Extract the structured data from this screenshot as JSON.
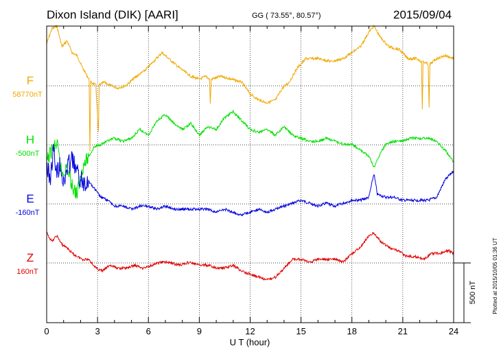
{
  "header": {
    "station": "Dixon Island (DIK)  [AARI]",
    "coords": "GG ( 73.55°,  80.57°)",
    "date": "2015/09/04"
  },
  "plotted_note": "Plotted at 2015/10/05 01:36 UT",
  "chart_data": {
    "type": "line",
    "xlabel": "U T (hour)",
    "xlim": [
      0,
      24
    ],
    "xticks": [
      "0",
      "3",
      "6",
      "9",
      "12",
      "15",
      "18",
      "21",
      "24"
    ],
    "scale_bar": {
      "label": "500 nT",
      "value_nT": 500
    },
    "grid": true,
    "series": [
      {
        "name": "F",
        "baseline_label": "58770nT",
        "color": "#f0a800",
        "points": [
          [
            0,
            0.3
          ],
          [
            0.3,
            0.05
          ],
          [
            0.6,
            0.0
          ],
          [
            0.9,
            0.35
          ],
          [
            1.2,
            0.25
          ],
          [
            1.5,
            0.45
          ],
          [
            1.8,
            0.5
          ],
          [
            2.1,
            0.7
          ],
          [
            2.5,
            0.9
          ],
          [
            2.55,
            2.1
          ],
          [
            2.6,
            0.95
          ],
          [
            2.9,
            1.0
          ],
          [
            3.05,
            1.8
          ],
          [
            3.1,
            1.0
          ],
          [
            3.4,
            0.95
          ],
          [
            3.7,
            1.0
          ],
          [
            4.2,
            1.05
          ],
          [
            4.7,
            1.0
          ],
          [
            5.3,
            0.85
          ],
          [
            5.8,
            0.75
          ],
          [
            6.3,
            0.6
          ],
          [
            6.8,
            0.45
          ],
          [
            7.2,
            0.55
          ],
          [
            7.8,
            0.7
          ],
          [
            8.5,
            0.85
          ],
          [
            9.0,
            0.9
          ],
          [
            9.4,
            0.85
          ],
          [
            9.6,
            0.9
          ],
          [
            9.65,
            1.3
          ],
          [
            9.7,
            0.9
          ],
          [
            10.3,
            0.85
          ],
          [
            10.9,
            0.9
          ],
          [
            11.5,
            0.95
          ],
          [
            12.0,
            1.15
          ],
          [
            12.5,
            1.25
          ],
          [
            13.0,
            1.3
          ],
          [
            13.5,
            1.25
          ],
          [
            13.9,
            1.05
          ],
          [
            14.3,
            0.95
          ],
          [
            14.8,
            0.7
          ],
          [
            15.3,
            0.55
          ],
          [
            16.0,
            0.55
          ],
          [
            16.8,
            0.6
          ],
          [
            17.5,
            0.55
          ],
          [
            18.0,
            0.45
          ],
          [
            18.5,
            0.35
          ],
          [
            19.0,
            0.1
          ],
          [
            19.3,
            0.0
          ],
          [
            19.7,
            0.2
          ],
          [
            20.2,
            0.35
          ],
          [
            20.8,
            0.4
          ],
          [
            21.3,
            0.55
          ],
          [
            21.8,
            0.55
          ],
          [
            22.1,
            0.6
          ],
          [
            22.15,
            1.4
          ],
          [
            22.2,
            0.6
          ],
          [
            22.5,
            0.65
          ],
          [
            22.55,
            1.4
          ],
          [
            22.6,
            0.65
          ],
          [
            23.0,
            0.55
          ],
          [
            23.5,
            0.5
          ],
          [
            24.0,
            0.55
          ]
        ]
      },
      {
        "name": "H",
        "baseline_label": "-500nT",
        "color": "#00e000",
        "points": [
          [
            0,
            2.3
          ],
          [
            0.3,
            2.1
          ],
          [
            0.6,
            2.0
          ],
          [
            0.9,
            2.5
          ],
          [
            1.2,
            2.4
          ],
          [
            1.5,
            2.7
          ],
          [
            1.8,
            2.85
          ],
          [
            2.1,
            2.4
          ],
          [
            2.5,
            2.2
          ],
          [
            2.8,
            2.05
          ],
          [
            3.2,
            2.0
          ],
          [
            3.6,
            1.95
          ],
          [
            4.0,
            1.9
          ],
          [
            4.5,
            1.95
          ],
          [
            5.0,
            1.9
          ],
          [
            5.5,
            1.75
          ],
          [
            6.0,
            1.85
          ],
          [
            6.5,
            1.6
          ],
          [
            7.0,
            1.5
          ],
          [
            7.5,
            1.65
          ],
          [
            8.0,
            1.75
          ],
          [
            8.5,
            1.65
          ],
          [
            9.0,
            1.85
          ],
          [
            9.5,
            1.7
          ],
          [
            10.0,
            1.75
          ],
          [
            10.5,
            1.55
          ],
          [
            11.0,
            1.45
          ],
          [
            11.5,
            1.6
          ],
          [
            12.0,
            1.75
          ],
          [
            12.5,
            1.8
          ],
          [
            13.0,
            1.75
          ],
          [
            13.5,
            1.85
          ],
          [
            14.0,
            1.7
          ],
          [
            14.5,
            1.85
          ],
          [
            15.0,
            1.9
          ],
          [
            15.5,
            1.95
          ],
          [
            16.0,
            1.95
          ],
          [
            16.5,
            1.9
          ],
          [
            17.0,
            1.95
          ],
          [
            17.5,
            2.0
          ],
          [
            18.0,
            2.0
          ],
          [
            18.5,
            2.1
          ],
          [
            19.0,
            2.2
          ],
          [
            19.3,
            2.4
          ],
          [
            19.6,
            2.2
          ],
          [
            20.0,
            2.0
          ],
          [
            20.5,
            1.95
          ],
          [
            21.0,
            1.95
          ],
          [
            21.5,
            1.9
          ],
          [
            22.0,
            1.9
          ],
          [
            22.5,
            1.9
          ],
          [
            23.0,
            1.95
          ],
          [
            23.5,
            2.1
          ],
          [
            24.0,
            2.3
          ]
        ]
      },
      {
        "name": "E",
        "baseline_label": "-160nT",
        "color": "#0000e0",
        "points": [
          [
            0,
            2.35
          ],
          [
            0.2,
            2.6
          ],
          [
            0.4,
            2.1
          ],
          [
            0.6,
            2.5
          ],
          [
            0.8,
            2.3
          ],
          [
            1.0,
            2.7
          ],
          [
            1.2,
            2.4
          ],
          [
            1.5,
            2.25
          ],
          [
            1.8,
            2.5
          ],
          [
            2.1,
            2.65
          ],
          [
            2.4,
            2.6
          ],
          [
            2.8,
            2.75
          ],
          [
            3.2,
            2.9
          ],
          [
            3.6,
            2.95
          ],
          [
            4.0,
            3.05
          ],
          [
            4.5,
            3.05
          ],
          [
            5.0,
            3.1
          ],
          [
            5.5,
            3.05
          ],
          [
            6.0,
            3.05
          ],
          [
            6.5,
            3.1
          ],
          [
            7.0,
            3.05
          ],
          [
            7.5,
            3.1
          ],
          [
            8.0,
            3.1
          ],
          [
            8.5,
            3.1
          ],
          [
            9.0,
            3.1
          ],
          [
            9.5,
            3.1
          ],
          [
            10.0,
            3.15
          ],
          [
            10.5,
            3.1
          ],
          [
            11.0,
            3.15
          ],
          [
            11.5,
            3.2
          ],
          [
            12.0,
            3.15
          ],
          [
            12.5,
            3.1
          ],
          [
            13.0,
            3.15
          ],
          [
            13.5,
            3.1
          ],
          [
            14.0,
            3.05
          ],
          [
            14.5,
            3.0
          ],
          [
            15.0,
            2.95
          ],
          [
            15.5,
            3.0
          ],
          [
            16.0,
            3.05
          ],
          [
            16.5,
            3.0
          ],
          [
            17.0,
            3.05
          ],
          [
            17.5,
            3.0
          ],
          [
            18.0,
            2.95
          ],
          [
            18.5,
            2.95
          ],
          [
            19.0,
            2.9
          ],
          [
            19.3,
            2.5
          ],
          [
            19.5,
            2.85
          ],
          [
            20.0,
            2.9
          ],
          [
            20.5,
            2.9
          ],
          [
            21.0,
            2.95
          ],
          [
            21.5,
            2.95
          ],
          [
            22.0,
            2.95
          ],
          [
            22.5,
            2.95
          ],
          [
            23.0,
            2.9
          ],
          [
            23.5,
            2.6
          ],
          [
            24.0,
            2.45
          ]
        ]
      },
      {
        "name": "Z",
        "baseline_label": "160nT",
        "color": "#e00000",
        "points": [
          [
            0,
            3.5
          ],
          [
            0.3,
            3.65
          ],
          [
            0.6,
            3.55
          ],
          [
            0.9,
            3.7
          ],
          [
            1.2,
            3.75
          ],
          [
            1.5,
            3.85
          ],
          [
            1.8,
            3.9
          ],
          [
            2.1,
            3.95
          ],
          [
            2.5,
            3.95
          ],
          [
            2.9,
            4.1
          ],
          [
            3.3,
            4.15
          ],
          [
            3.7,
            4.05
          ],
          [
            4.2,
            4.1
          ],
          [
            4.7,
            4.1
          ],
          [
            5.2,
            4.05
          ],
          [
            5.7,
            4.1
          ],
          [
            6.2,
            4.05
          ],
          [
            6.7,
            4.0
          ],
          [
            7.2,
            4.0
          ],
          [
            7.8,
            4.05
          ],
          [
            8.4,
            4.0
          ],
          [
            9.0,
            4.05
          ],
          [
            9.5,
            4.05
          ],
          [
            10.0,
            4.1
          ],
          [
            10.5,
            4.1
          ],
          [
            11.0,
            4.05
          ],
          [
            11.5,
            4.15
          ],
          [
            12.0,
            4.2
          ],
          [
            12.5,
            4.25
          ],
          [
            13.0,
            4.3
          ],
          [
            13.5,
            4.25
          ],
          [
            14.0,
            4.1
          ],
          [
            14.5,
            3.95
          ],
          [
            15.0,
            3.95
          ],
          [
            15.5,
            4.0
          ],
          [
            16.0,
            3.95
          ],
          [
            16.5,
            3.95
          ],
          [
            17.0,
            3.95
          ],
          [
            17.5,
            4.0
          ],
          [
            18.0,
            3.85
          ],
          [
            18.5,
            3.75
          ],
          [
            19.0,
            3.55
          ],
          [
            19.3,
            3.5
          ],
          [
            19.7,
            3.65
          ],
          [
            20.2,
            3.75
          ],
          [
            20.7,
            3.8
          ],
          [
            21.2,
            3.9
          ],
          [
            21.7,
            3.9
          ],
          [
            22.2,
            3.95
          ],
          [
            22.7,
            3.85
          ],
          [
            23.2,
            3.85
          ],
          [
            23.7,
            3.8
          ],
          [
            24.0,
            3.85
          ]
        ]
      }
    ]
  }
}
